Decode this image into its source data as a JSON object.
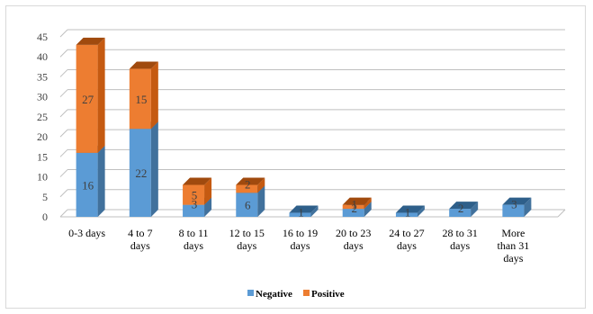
{
  "chart_data": {
    "type": "bar",
    "stacked": true,
    "three_d": true,
    "categories": [
      "0-3 days",
      "4 to 7 days",
      "8 to 11 days",
      "12 to 15 days",
      "16 to 19 days",
      "20 to 23 days",
      "24 to 27 days",
      "28 to 31 days",
      "More than 31 days"
    ],
    "category_lines": [
      [
        "0-3 days"
      ],
      [
        "4 to 7",
        "days"
      ],
      [
        "8 to 11",
        "days"
      ],
      [
        "12 to 15",
        "days"
      ],
      [
        "16 to 19",
        "days"
      ],
      [
        "20 to 23",
        "days"
      ],
      [
        "24 to 27",
        "days"
      ],
      [
        "28 to 31",
        "days"
      ],
      [
        "More",
        "than 31",
        "days"
      ]
    ],
    "series": [
      {
        "name": "Negative",
        "values": [
          16,
          22,
          3,
          6,
          1,
          2,
          1,
          2,
          3
        ],
        "color": "#5b9bd5"
      },
      {
        "name": "Positive",
        "values": [
          27,
          15,
          5,
          2,
          0,
          1,
          0,
          0,
          0
        ],
        "color": "#ed7d31"
      }
    ],
    "title": "",
    "xlabel": "",
    "ylabel": "",
    "ylim": [
      0,
      45
    ],
    "yticks": [
      "0",
      "5",
      "10",
      "15",
      "20",
      "25",
      "30",
      "35",
      "40",
      "45"
    ],
    "grid": true,
    "legend_position": "bottom"
  }
}
